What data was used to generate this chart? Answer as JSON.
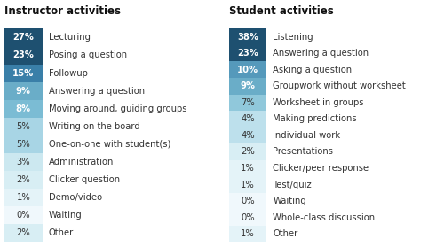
{
  "instructor_title": "Instructor activities",
  "student_title": "Student activities",
  "instructor_items": [
    {
      "pct": 27,
      "label": "Lecturing"
    },
    {
      "pct": 23,
      "label": "Posing a question"
    },
    {
      "pct": 15,
      "label": "Followup"
    },
    {
      "pct": 9,
      "label": "Answering a question"
    },
    {
      "pct": 8,
      "label": "Moving around, guiding groups"
    },
    {
      "pct": 5,
      "label": "Writing on the board"
    },
    {
      "pct": 5,
      "label": "One-on-one with student(s)"
    },
    {
      "pct": 3,
      "label": "Administration"
    },
    {
      "pct": 2,
      "label": "Clicker question"
    },
    {
      "pct": 1,
      "label": "Demo/video"
    },
    {
      "pct": 0,
      "label": "Waiting"
    },
    {
      "pct": 2,
      "label": "Other"
    }
  ],
  "student_items": [
    {
      "pct": 38,
      "label": "Listening"
    },
    {
      "pct": 23,
      "label": "Answering a question"
    },
    {
      "pct": 10,
      "label": "Asking a question"
    },
    {
      "pct": 9,
      "label": "Groupwork without worksheet"
    },
    {
      "pct": 7,
      "label": "Worksheet in groups"
    },
    {
      "pct": 4,
      "label": "Making predictions"
    },
    {
      "pct": 4,
      "label": "Individual work"
    },
    {
      "pct": 2,
      "label": "Presentations"
    },
    {
      "pct": 1,
      "label": "Clicker/peer response"
    },
    {
      "pct": 1,
      "label": "Test/quiz"
    },
    {
      "pct": 0,
      "label": "Waiting"
    },
    {
      "pct": 0,
      "label": "Whole-class discussion"
    },
    {
      "pct": 1,
      "label": "Other"
    }
  ],
  "color_thresholds": [
    [
      27,
      "#1e5070"
    ],
    [
      23,
      "#1e5070"
    ],
    [
      20,
      "#2a6a90"
    ],
    [
      15,
      "#3a7fa8"
    ],
    [
      10,
      "#5599bb"
    ],
    [
      9,
      "#6aadc8"
    ],
    [
      8,
      "#7bbcd4"
    ],
    [
      7,
      "#90c8db"
    ],
    [
      5,
      "#a8d5e5"
    ],
    [
      4,
      "#bde0ec"
    ],
    [
      3,
      "#cce8f0"
    ],
    [
      2,
      "#d8eef4"
    ],
    [
      1,
      "#e4f3f8"
    ],
    [
      0,
      "#f0f8fc"
    ]
  ],
  "bg_color": "#ffffff",
  "text_color": "#333333",
  "title_fontsize": 8.5,
  "label_fontsize": 7.2,
  "pct_fontsize": 7.2
}
